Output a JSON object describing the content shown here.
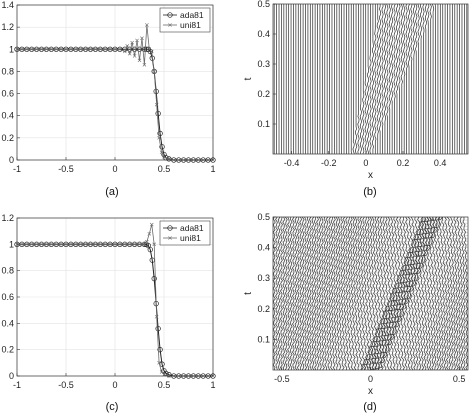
{
  "chart_data": [
    {
      "id": "a",
      "caption": "(a)",
      "type": "line",
      "xlim": [
        -1,
        1
      ],
      "ylim": [
        0,
        1.4
      ],
      "xticks": [
        -1,
        -0.5,
        0,
        0.5,
        1
      ],
      "yticks": [
        0,
        0.2,
        0.4,
        0.6,
        0.8,
        1,
        1.2,
        1.4
      ],
      "xlabel": "",
      "ylabel": "",
      "grid": true,
      "legend": "top-right",
      "series": [
        {
          "name": "ada81",
          "marker": "circle",
          "x": [
            -1,
            -0.95,
            -0.9,
            -0.85,
            -0.8,
            -0.75,
            -0.7,
            -0.65,
            -0.6,
            -0.55,
            -0.5,
            -0.45,
            -0.4,
            -0.35,
            -0.3,
            -0.25,
            -0.2,
            -0.15,
            -0.1,
            -0.05,
            0,
            0.05,
            0.1,
            0.15,
            0.2,
            0.25,
            0.3,
            0.32,
            0.34,
            0.36,
            0.38,
            0.4,
            0.42,
            0.44,
            0.46,
            0.48,
            0.5,
            0.52,
            0.55,
            0.6,
            0.65,
            0.7,
            0.75,
            0.8,
            0.85,
            0.9,
            0.95,
            1
          ],
          "y": [
            1,
            1,
            1,
            1,
            1,
            1,
            1,
            1,
            1,
            1,
            1,
            1,
            1,
            1,
            1,
            1,
            1,
            1,
            1,
            1,
            1,
            1,
            1,
            1,
            1,
            1,
            1,
            1,
            1,
            0.98,
            0.92,
            0.8,
            0.62,
            0.42,
            0.24,
            0.12,
            0.05,
            0.02,
            0.01,
            0,
            0,
            0,
            0,
            0,
            0,
            0,
            0,
            0
          ]
        },
        {
          "name": "uni81",
          "marker": "x",
          "x": [
            -1,
            -0.95,
            -0.9,
            -0.85,
            -0.8,
            -0.75,
            -0.7,
            -0.65,
            -0.6,
            -0.55,
            -0.5,
            -0.45,
            -0.4,
            -0.35,
            -0.3,
            -0.25,
            -0.2,
            -0.15,
            -0.1,
            -0.05,
            0,
            0.05,
            0.1,
            0.125,
            0.15,
            0.175,
            0.2,
            0.225,
            0.25,
            0.275,
            0.3,
            0.325,
            0.35,
            0.375,
            0.4,
            0.425,
            0.45,
            0.475,
            0.5,
            0.55,
            0.6,
            0.65,
            0.7,
            0.75,
            0.8,
            0.85,
            0.9,
            0.95,
            1
          ],
          "y": [
            1,
            1,
            1,
            1,
            1,
            1,
            1,
            1,
            1,
            1,
            1,
            1,
            1,
            1,
            1,
            1,
            1,
            1,
            1,
            1,
            1,
            1,
            0.98,
            1.03,
            0.96,
            1.06,
            0.94,
            1.08,
            0.9,
            1.1,
            0.86,
            1.22,
            1.0,
            0.98,
            0.8,
            0.5,
            0.2,
            0.07,
            0.03,
            0.01,
            0,
            0,
            0,
            0,
            0,
            0,
            0,
            0,
            0
          ]
        }
      ]
    },
    {
      "id": "b",
      "caption": "(b)",
      "type": "line",
      "xlim": [
        -0.5,
        0.55
      ],
      "ylim": [
        0,
        0.5
      ],
      "xticks": [
        -0.4,
        -0.2,
        0,
        0.2,
        0.4
      ],
      "yticks": [
        0.1,
        0.2,
        0.3,
        0.4,
        0.5
      ],
      "xlabel": "x",
      "ylabel": "t",
      "grid": false,
      "legend": "none",
      "mesh": "uniform",
      "line_count": 81,
      "front": {
        "t": [
          0,
          0.5
        ],
        "x_left": [
          -0.08,
          0.08
        ],
        "x_right": [
          0.02,
          0.38
        ]
      }
    },
    {
      "id": "c",
      "caption": "(c)",
      "type": "line",
      "xlim": [
        -1,
        1
      ],
      "ylim": [
        0,
        1.2
      ],
      "xticks": [
        -1,
        -0.5,
        0,
        0.5,
        1
      ],
      "yticks": [
        0,
        0.2,
        0.4,
        0.6,
        0.8,
        1,
        1.2
      ],
      "xlabel": "",
      "ylabel": "",
      "grid": true,
      "legend": "top-right",
      "series": [
        {
          "name": "ada81",
          "marker": "circle",
          "x": [
            -1,
            -0.95,
            -0.9,
            -0.85,
            -0.8,
            -0.75,
            -0.7,
            -0.65,
            -0.6,
            -0.55,
            -0.5,
            -0.45,
            -0.4,
            -0.35,
            -0.3,
            -0.25,
            -0.2,
            -0.15,
            -0.1,
            -0.05,
            0,
            0.05,
            0.1,
            0.15,
            0.2,
            0.25,
            0.3,
            0.32,
            0.34,
            0.36,
            0.38,
            0.4,
            0.42,
            0.44,
            0.46,
            0.48,
            0.5,
            0.52,
            0.55,
            0.6,
            0.65,
            0.7,
            0.75,
            0.8,
            0.85,
            0.9,
            0.95,
            1
          ],
          "y": [
            1,
            1,
            1,
            1,
            1,
            1,
            1,
            1,
            1,
            1,
            1,
            1,
            1,
            1,
            1,
            1,
            1,
            1,
            1,
            1,
            1,
            1,
            1,
            1,
            1,
            1,
            1,
            1,
            0.99,
            0.96,
            0.88,
            0.74,
            0.55,
            0.36,
            0.2,
            0.09,
            0.04,
            0.02,
            0.01,
            0,
            0,
            0,
            0,
            0,
            0,
            0,
            0,
            0
          ]
        },
        {
          "name": "uni81",
          "marker": "x",
          "x": [
            -1,
            -0.95,
            -0.9,
            -0.85,
            -0.8,
            -0.75,
            -0.7,
            -0.65,
            -0.6,
            -0.55,
            -0.5,
            -0.45,
            -0.4,
            -0.35,
            -0.3,
            -0.25,
            -0.2,
            -0.15,
            -0.1,
            -0.05,
            0,
            0.05,
            0.1,
            0.15,
            0.2,
            0.25,
            0.3,
            0.325,
            0.35,
            0.375,
            0.4,
            0.425,
            0.45,
            0.475,
            0.5,
            0.55,
            0.6,
            0.65,
            0.7,
            0.75,
            0.8,
            0.85,
            0.9,
            0.95,
            1
          ],
          "y": [
            1,
            1,
            1,
            1,
            1,
            1,
            1,
            1,
            1,
            1,
            1,
            1,
            1,
            1,
            1,
            1,
            1,
            1,
            1,
            1,
            1,
            1,
            1,
            1,
            1,
            1,
            1,
            1.02,
            1.08,
            1.15,
            1.0,
            0.45,
            0.1,
            0.03,
            0.01,
            0,
            0,
            0,
            0,
            0,
            0,
            0,
            0,
            0,
            0
          ]
        }
      ]
    },
    {
      "id": "d",
      "caption": "(d)",
      "type": "line",
      "xlim": [
        -0.55,
        0.55
      ],
      "ylim": [
        0,
        0.5
      ],
      "xticks": [
        -0.5,
        0,
        0.5
      ],
      "yticks": [
        0.1,
        0.2,
        0.3,
        0.4,
        0.5
      ],
      "xlabel": "x",
      "ylabel": "t",
      "grid": false,
      "legend": "none",
      "mesh": "adaptive",
      "line_count": 81
    }
  ]
}
